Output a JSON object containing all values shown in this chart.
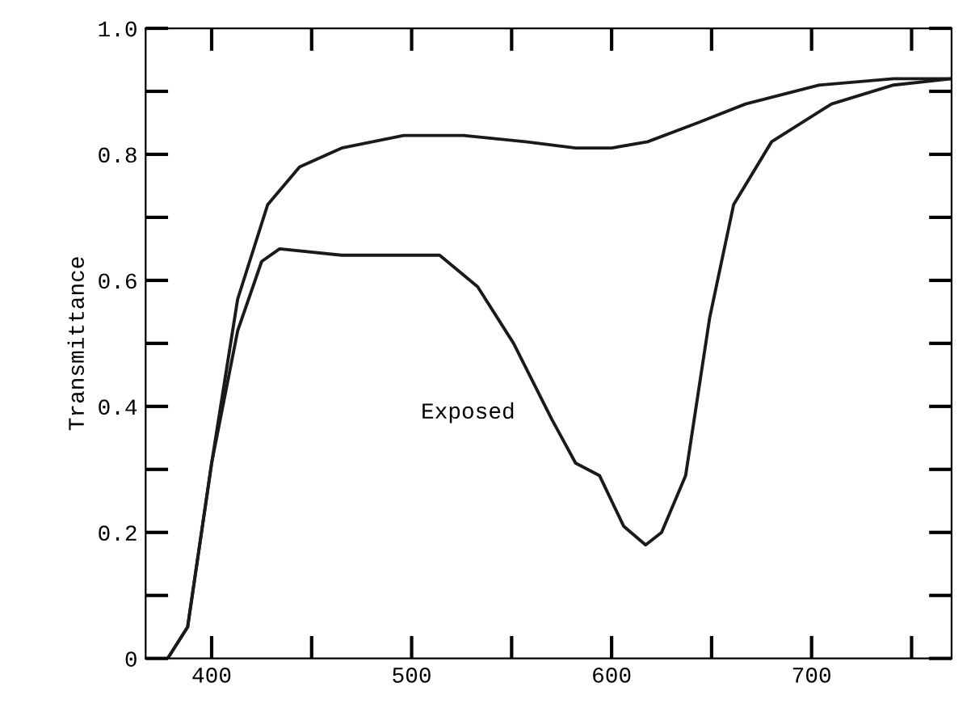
{
  "chart_data": {
    "type": "line",
    "ylabel": "Transmittance",
    "xlim": [
      367,
      770
    ],
    "ylim": [
      0,
      1.0
    ],
    "xticks": [
      400,
      {
        "value": 450,
        "label": null
      },
      500,
      {
        "value": 550,
        "label": null
      },
      600,
      {
        "value": 650,
        "label": null
      },
      700,
      {
        "value": 750,
        "label": null
      }
    ],
    "yticks": [
      {
        "value": 0,
        "label": "0"
      },
      {
        "value": 0.1,
        "label": null
      },
      {
        "value": 0.2,
        "label": "0.2"
      },
      {
        "value": 0.3,
        "label": null
      },
      {
        "value": 0.4,
        "label": "0.4"
      },
      {
        "value": 0.5,
        "label": null
      },
      {
        "value": 0.6,
        "label": "0.6"
      },
      {
        "value": 0.7,
        "label": null
      },
      {
        "value": 0.8,
        "label": "0.8"
      },
      {
        "value": 0.9,
        "label": null
      },
      {
        "value": 1.0,
        "label": "1.0"
      }
    ],
    "grid": false,
    "legend": false,
    "marker": "none",
    "line_style": "solid",
    "annotations": [
      "Exposed"
    ],
    "series": [
      {
        "color": "#1a1a1a",
        "x": [
          378,
          388,
          400,
          413,
          428,
          444,
          465,
          496,
          526,
          557,
          582,
          600,
          618,
          643,
          667,
          704,
          741,
          770
        ],
        "values": [
          0,
          0.05,
          0.31,
          0.57,
          0.72,
          0.78,
          0.81,
          0.83,
          0.83,
          0.82,
          0.81,
          0.81,
          0.82,
          0.85,
          0.88,
          0.91,
          0.92,
          0.92
        ]
      },
      {
        "color": "#1a1a1a",
        "x": [
          378,
          388,
          400,
          413,
          425,
          434,
          465,
          496,
          514,
          533,
          551,
          570,
          582,
          594,
          606,
          617,
          625,
          637,
          649,
          661,
          680,
          710,
          741,
          770
        ],
        "values": [
          0,
          0.05,
          0.31,
          0.52,
          0.63,
          0.65,
          0.64,
          0.64,
          0.64,
          0.59,
          0.5,
          0.38,
          0.31,
          0.29,
          0.21,
          0.18,
          0.2,
          0.29,
          0.54,
          0.72,
          0.82,
          0.88,
          0.91,
          0.92
        ]
      }
    ]
  }
}
